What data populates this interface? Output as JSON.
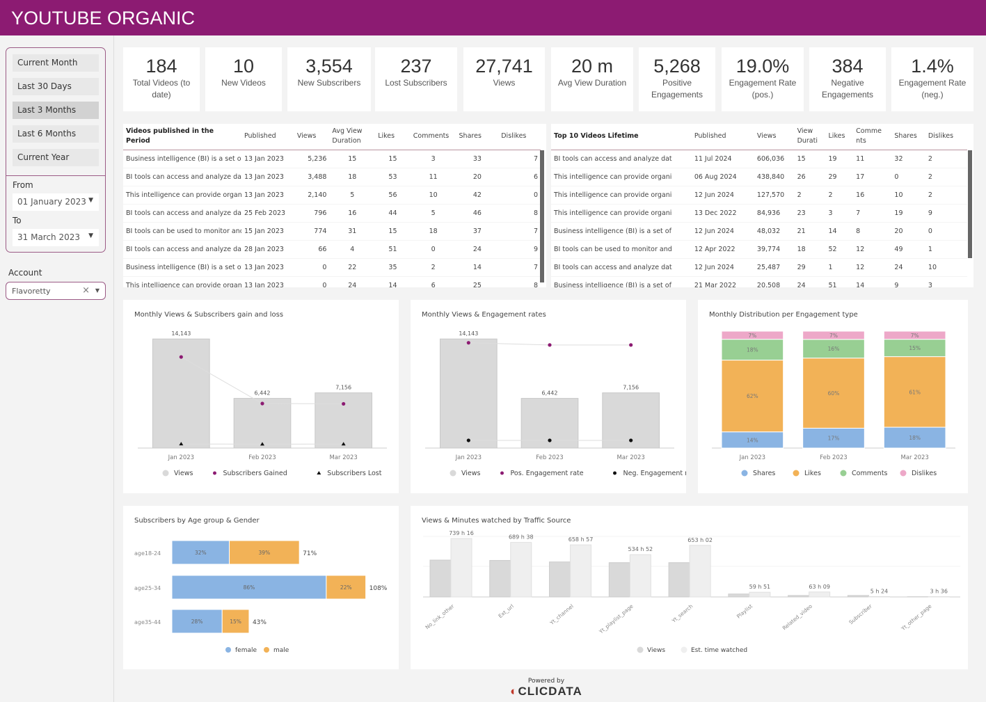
{
  "header": {
    "title": "YOUTUBE ORGANIC"
  },
  "sidebar": {
    "presets": [
      "Current Month",
      "Last 30 Days",
      "Last 3 Months",
      "Last 6 Months",
      "Current Year"
    ],
    "selected_preset": "Last 3 Months",
    "from_label": "From",
    "from_value": "01 January 2023",
    "to_label": "To",
    "to_value": "31 March 2023",
    "account_label": "Account",
    "account_value": "Flavoretty"
  },
  "kpis": [
    {
      "value": "184",
      "label": "Total Videos (to date)"
    },
    {
      "value": "10",
      "label": "New Videos"
    },
    {
      "value": "3,554",
      "label": "New Subscribers"
    },
    {
      "value": "237",
      "label": "Lost Subscribers"
    },
    {
      "value": "27,741",
      "label": "Views"
    },
    {
      "value": "20 m",
      "label": "Avg View Duration"
    },
    {
      "value": "5,268",
      "label": "Positive Engagements"
    },
    {
      "value": "19.0%",
      "label": "Engagement Rate (pos.)"
    },
    {
      "value": "384",
      "label": "Negative Engagements"
    },
    {
      "value": "1.4%",
      "label": "Engagement Rate (neg.)"
    }
  ],
  "period_table": {
    "headers": [
      "Videos published in the Period",
      "Published",
      "Views",
      "Avg View Duration",
      "Likes",
      "Comments",
      "Shares",
      "Dislikes"
    ],
    "rows": [
      [
        "Business intelligence (BI) is a set of",
        "13 Jan 2023",
        "5,236",
        "15",
        "15",
        "3",
        "33",
        "7"
      ],
      [
        "BI tools can access and analyze dat",
        "13 Jan 2023",
        "3,488",
        "18",
        "53",
        "11",
        "20",
        "6"
      ],
      [
        "This intelligence can provide organ",
        "13 Jan 2023",
        "2,140",
        "5",
        "56",
        "10",
        "42",
        "0"
      ],
      [
        "BI tools can access and analyze dat",
        "25 Feb 2023",
        "796",
        "16",
        "44",
        "5",
        "46",
        "8"
      ],
      [
        "BI tools can be used to monitor and",
        "15 Jan 2023",
        "774",
        "31",
        "15",
        "18",
        "37",
        "7"
      ],
      [
        "BI tools can access and analyze dat",
        "28 Jan 2023",
        "66",
        "4",
        "51",
        "0",
        "24",
        "9"
      ],
      [
        "Business intelligence (BI) is a set of",
        "13 Jan 2023",
        "0",
        "22",
        "35",
        "2",
        "14",
        "7"
      ],
      [
        "This intelligence can provide organ",
        "13 Jan 2023",
        "0",
        "24",
        "14",
        "6",
        "25",
        "8"
      ]
    ]
  },
  "top_table": {
    "headers": [
      "Top 10 Videos Lifetime",
      "Published",
      "Views",
      "View Durati",
      "Likes",
      "Comme nts",
      "Shares",
      "Dislikes"
    ],
    "rows": [
      [
        "BI tools can access and analyze dat",
        "11 Jul 2024",
        "606,036",
        "15",
        "19",
        "11",
        "32",
        "2"
      ],
      [
        "This intelligence can provide organi",
        "06 Aug 2024",
        "438,840",
        "26",
        "29",
        "17",
        "0",
        "2"
      ],
      [
        "This intelligence can provide organi",
        "12 Jun 2024",
        "127,570",
        "2",
        "2",
        "16",
        "10",
        "2"
      ],
      [
        "This intelligence can provide organi",
        "13 Dec 2022",
        "84,936",
        "23",
        "3",
        "7",
        "19",
        "9"
      ],
      [
        "Business intelligence (BI) is a set of",
        "12 Jun 2024",
        "48,032",
        "21",
        "14",
        "8",
        "20",
        "0"
      ],
      [
        "BI tools can be used to monitor and",
        "12 Apr 2022",
        "39,774",
        "18",
        "52",
        "12",
        "49",
        "1"
      ],
      [
        "BI tools can access and analyze dat",
        "12 Jun 2024",
        "25,487",
        "29",
        "1",
        "12",
        "24",
        "10"
      ],
      [
        "Business intelligence (BI) is a set of",
        "21 Mar 2022",
        "20,508",
        "24",
        "51",
        "14",
        "9",
        "3"
      ]
    ]
  },
  "chart_data": [
    {
      "type": "bar",
      "title": "Monthly Views & Subscribers gain and loss",
      "categories": [
        "Jan 2023",
        "Feb 2023",
        "Mar 2023"
      ],
      "series": [
        {
          "name": "Views",
          "type": "bar",
          "values": [
            14143,
            6442,
            7156
          ],
          "color": "#d9d9d9"
        },
        {
          "name": "Subscribers Gained",
          "type": "line",
          "values": [
            1800,
            880,
            874
          ],
          "color": "#8c1b72"
        },
        {
          "name": "Subscribers Lost",
          "type": "line",
          "values": [
            80,
            78,
            79
          ],
          "color": "#111111"
        }
      ]
    },
    {
      "type": "bar",
      "title": "Monthly Views & Engagement rates",
      "categories": [
        "Jan 2023",
        "Feb 2023",
        "Mar 2023"
      ],
      "series": [
        {
          "name": "Views",
          "type": "bar",
          "values": [
            14143,
            6442,
            7156
          ],
          "color": "#d9d9d9"
        },
        {
          "name": "Pos. Engagement rate",
          "type": "line",
          "values": [
            19.2,
            18.8,
            18.8
          ],
          "color": "#8c1b72"
        },
        {
          "name": "Neg. Engagement rate",
          "type": "line",
          "values": [
            1.4,
            1.4,
            1.4
          ],
          "color": "#111111"
        }
      ]
    },
    {
      "type": "bar",
      "stacked": true,
      "title": "Monthly Distribution per Engagement type",
      "categories": [
        "Jan 2023",
        "Feb 2023",
        "Mar 2023"
      ],
      "series": [
        {
          "name": "Shares",
          "values": [
            14,
            17,
            18
          ],
          "color": "#8ab4e3"
        },
        {
          "name": "Likes",
          "values": [
            62,
            60,
            61
          ],
          "color": "#f2b257"
        },
        {
          "name": "Comments",
          "values": [
            18,
            16,
            15
          ],
          "color": "#98cf93"
        },
        {
          "name": "Dislikes",
          "values": [
            7,
            7,
            7
          ],
          "color": "#eda8c8"
        }
      ]
    },
    {
      "type": "bar",
      "horizontal": true,
      "stacked": true,
      "title": "Subscribers by Age group & Gender",
      "categories": [
        "age18-24",
        "age25-34",
        "age35-44"
      ],
      "series": [
        {
          "name": "female",
          "values": [
            32,
            86,
            28
          ],
          "color": "#8ab4e3"
        },
        {
          "name": "male",
          "values": [
            39,
            22,
            15
          ],
          "color": "#f2b257"
        }
      ],
      "totals": [
        "71%",
        "108%",
        "43%"
      ]
    },
    {
      "type": "bar",
      "title": "Views & Minutes watched by Traffic Source",
      "categories": [
        "No_link_other",
        "Ext_url",
        "Yt_channel",
        "Yt_playlist_page",
        "Yt_search",
        "Playlist",
        "Related_video",
        "Subscriber",
        "Yt_other_page"
      ],
      "series": [
        {
          "name": "Views",
          "values": [
            500,
            495,
            475,
            465,
            465,
            40,
            20,
            20,
            3
          ],
          "color": "#d9d9d9"
        },
        {
          "name": "Est. time watched",
          "values": [
            739.27,
            689.63,
            658.95,
            534.87,
            653.03,
            59.85,
            63.15,
            5.4,
            3.6
          ],
          "labels": [
            "739 h 16",
            "689 h 38",
            "658 h 57",
            "534 h 52",
            "653 h 02",
            "59 h 51",
            "63 h 09",
            "5 h 24",
            "3 h 36"
          ],
          "color": "#efefef"
        }
      ]
    }
  ],
  "footer": {
    "powered_by": "Powered by",
    "brand": "CLICDATA"
  }
}
